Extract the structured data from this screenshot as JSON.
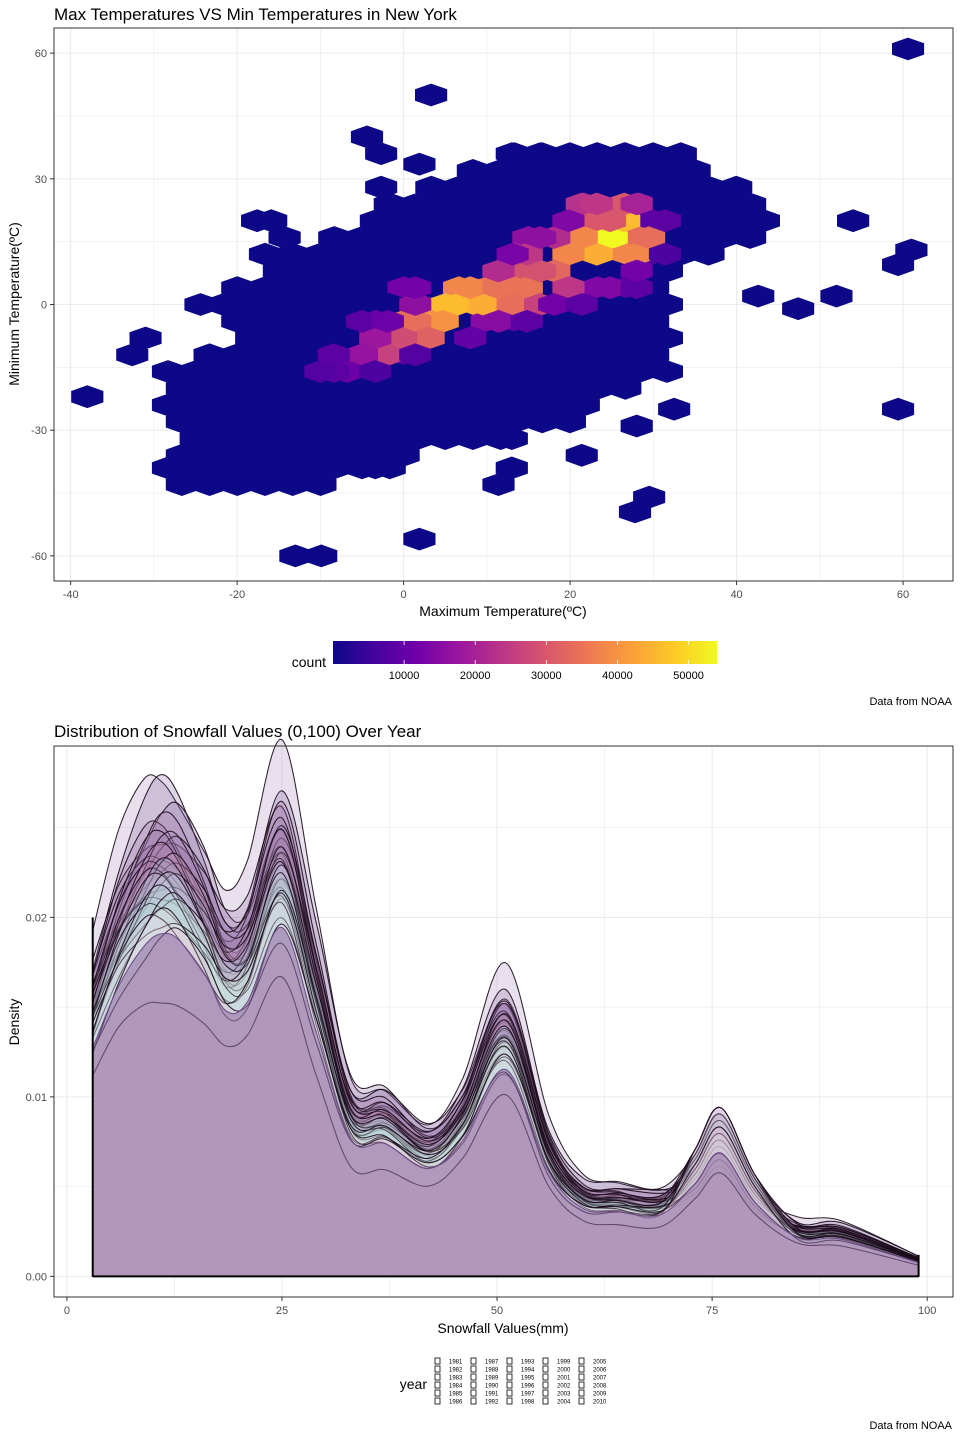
{
  "chart_data": [
    {
      "type": "heatmap",
      "subtype": "hexbin",
      "title": "Max Temperatures VS Min Temperatures in New York",
      "xlabel": "Maximum Temperature(ºC)",
      "ylabel": "Minimum Temperature(ºC)",
      "xlim": [
        -42,
        66
      ],
      "ylim": [
        -66,
        66
      ],
      "xticks": [
        -40,
        -20,
        0,
        20,
        40,
        60
      ],
      "yticks": [
        -60,
        -30,
        0,
        30,
        60
      ],
      "grid": true,
      "legend": {
        "title": "count",
        "position": "bottom",
        "ticks": [
          10000,
          20000,
          30000,
          40000,
          50000
        ],
        "range": [
          1,
          54000
        ],
        "palette": [
          "#0d0887",
          "#46039f",
          "#7201a8",
          "#9c179e",
          "#bd3786",
          "#d8576b",
          "#ed7953",
          "#fb9f3a",
          "#fdca26",
          "#f0f921"
        ]
      },
      "caption": "Data from NOAA",
      "sparse_cells": [
        [
          -38.0,
          -22.0,
          1
        ],
        [
          -31.0,
          -8.0,
          1
        ],
        [
          -32.6,
          -12.0,
          1
        ],
        [
          -24.4,
          0.0,
          1
        ],
        [
          -17.6,
          20.0,
          1
        ],
        [
          -15.9,
          20.0,
          1
        ],
        [
          -14.3,
          16.0,
          1
        ],
        [
          -4.4,
          40.0,
          1
        ],
        [
          -2.7,
          36.0,
          1
        ],
        [
          -2.7,
          28.0,
          1
        ],
        [
          1.9,
          33.5,
          1
        ],
        [
          3.3,
          50.0,
          1
        ],
        [
          13.0,
          36.0,
          1
        ],
        [
          16.4,
          36.0,
          1
        ],
        [
          23.2,
          36.0,
          1
        ],
        [
          26.5,
          36.0,
          1
        ],
        [
          54.0,
          20.0,
          1
        ],
        [
          42.6,
          2.0,
          1
        ],
        [
          47.4,
          -1.0,
          1
        ],
        [
          52.0,
          2.0,
          1
        ],
        [
          60.6,
          61.0,
          1
        ],
        [
          61.0,
          13.0,
          1
        ],
        [
          59.4,
          9.5,
          1
        ],
        [
          59.4,
          -25.0,
          1
        ],
        [
          32.5,
          -25.0,
          1
        ],
        [
          28.0,
          -29.0,
          1
        ],
        [
          29.5,
          -46.0,
          1
        ],
        [
          27.8,
          -49.5,
          1
        ],
        [
          21.4,
          -36.0,
          1
        ],
        [
          13.0,
          -32.0,
          1
        ],
        [
          13.0,
          -39.0,
          1
        ],
        [
          11.4,
          -43.0,
          1
        ],
        [
          1.9,
          -56.0,
          1
        ],
        [
          -13.0,
          -60.0,
          1
        ],
        [
          -9.9,
          -60.0,
          1
        ],
        [
          -3.4,
          -39.0,
          1
        ]
      ],
      "dense_cells": [
        [
          25.0,
          16.0,
          54000
        ],
        [
          26.5,
          20.0,
          46000
        ],
        [
          23.2,
          12.0,
          44000
        ],
        [
          28.0,
          12.0,
          38000
        ],
        [
          21.4,
          16.0,
          38000
        ],
        [
          29.5,
          16.0,
          34000
        ],
        [
          26.5,
          24.0,
          30000
        ],
        [
          24.8,
          20.0,
          30000
        ],
        [
          19.8,
          12.0,
          38000
        ],
        [
          18.1,
          8.0,
          33000
        ],
        [
          6.4,
          0.0,
          46000
        ],
        [
          9.7,
          0.0,
          44000
        ],
        [
          4.7,
          -4.0,
          40000
        ],
        [
          8.0,
          4.0,
          38000
        ],
        [
          11.4,
          4.0,
          35000
        ],
        [
          14.8,
          4.0,
          35000
        ],
        [
          13.1,
          0.0,
          34000
        ],
        [
          1.4,
          -4.0,
          34000
        ],
        [
          3.0,
          -8.0,
          32000
        ],
        [
          -0.3,
          -8.0,
          28000
        ],
        [
          -2.0,
          -12.0,
          26000
        ],
        [
          16.4,
          8.0,
          29000
        ],
        [
          16.4,
          0.0,
          26000
        ],
        [
          19.8,
          4.0,
          24000
        ],
        [
          21.4,
          24.0,
          23000
        ],
        [
          23.2,
          24.0,
          24000
        ],
        [
          28.0,
          24.0,
          20000
        ],
        [
          31.4,
          20.0,
          9000
        ],
        [
          18.1,
          16.0,
          22000
        ],
        [
          14.8,
          12.0,
          24000
        ],
        [
          11.4,
          8.0,
          22000
        ],
        [
          24.8,
          4.0,
          14000
        ],
        [
          28.0,
          4.0,
          9000
        ],
        [
          -3.4,
          -8.0,
          18000
        ],
        [
          -5.0,
          -12.0,
          17000
        ],
        [
          1.4,
          0.0,
          16000
        ],
        [
          11.4,
          -4.0,
          15000
        ],
        [
          8.0,
          -8.0,
          10000
        ],
        [
          -6.8,
          -16.0,
          11000
        ],
        [
          -8.4,
          -16.0,
          9000
        ],
        [
          -10.0,
          -16.0,
          8000
        ],
        [
          -3.4,
          -16.0,
          7000
        ],
        [
          -8.4,
          -12.0,
          9000
        ],
        [
          1.4,
          -12.0,
          8000
        ],
        [
          28.0,
          8.0,
          12000
        ],
        [
          31.4,
          12.0,
          7000
        ],
        [
          19.8,
          20.0,
          14000
        ],
        [
          16.4,
          16.0,
          16000
        ],
        [
          13.1,
          12.0,
          13000
        ],
        [
          -5.0,
          -4.0,
          9000
        ],
        [
          1.4,
          4.0,
          12000
        ],
        [
          18.1,
          0.0,
          12000
        ],
        [
          14.8,
          -4.0,
          9000
        ],
        [
          21.4,
          0.0,
          9000
        ],
        [
          -1.9,
          -4.0,
          11000
        ]
      ]
    },
    {
      "type": "area",
      "subtype": "density",
      "title": "Distribution of Snowfall Values (0,100) Over Year",
      "xlabel": "Snowfall Values(mm)",
      "ylabel": "Density",
      "xlim": [
        -1.5,
        103
      ],
      "ylim": [
        -0.00115,
        0.02955
      ],
      "xticks": [
        0,
        25,
        50,
        75,
        100
      ],
      "yticks": [
        0.0,
        0.01,
        0.02
      ],
      "ytick_labels": [
        "0.00",
        "0.01",
        "0.02"
      ],
      "grid": true,
      "legend": {
        "title": "year",
        "position": "bottom",
        "columns": [
          [
            "1981",
            "1982",
            "1983",
            "1984",
            "1985",
            "1986"
          ],
          [
            "1987",
            "1988",
            "1989",
            "1990",
            "1991",
            "1992"
          ],
          [
            "1993",
            "1994",
            "1995",
            "1996",
            "1997",
            "1998"
          ],
          [
            "1999",
            "2000",
            "2001",
            "2002",
            "2003",
            "2004"
          ],
          [
            "2005",
            "2006",
            "2007",
            "2008",
            "2009",
            "2010"
          ]
        ]
      },
      "caption": "Data from NOAA",
      "x": [
        3,
        6,
        9,
        11,
        13,
        16,
        18.5,
        21,
        25,
        29,
        33,
        37,
        42,
        46,
        51,
        56,
        60,
        64,
        69,
        73,
        76,
        80,
        85,
        90,
        99
      ],
      "series_profile": [
        0.0148,
        0.0188,
        0.0214,
        0.0222,
        0.0218,
        0.0196,
        0.0172,
        0.0178,
        0.0226,
        0.0158,
        0.0089,
        0.0086,
        0.007,
        0.0088,
        0.0134,
        0.0068,
        0.0044,
        0.0042,
        0.004,
        0.006,
        0.008,
        0.0048,
        0.0025,
        0.0024,
        0.0009
      ],
      "series_scales": [
        0.72,
        0.86,
        0.88,
        0.9,
        0.92,
        0.93,
        0.94,
        0.95,
        0.96,
        0.97,
        0.98,
        0.99,
        1.0,
        1.0,
        1.01,
        1.02,
        1.03,
        1.04,
        1.05,
        1.06,
        1.07,
        1.08,
        1.09,
        1.1,
        1.11,
        1.12,
        1.14,
        1.16,
        1.2,
        1.26
      ],
      "peaks": {
        "x": [
          11,
          25,
          38,
          51,
          64,
          76,
          90
        ],
        "max_density": [
          0.0282,
          0.0275,
          0.01,
          0.0166,
          0.0049,
          0.0101,
          0.003
        ]
      }
    }
  ]
}
